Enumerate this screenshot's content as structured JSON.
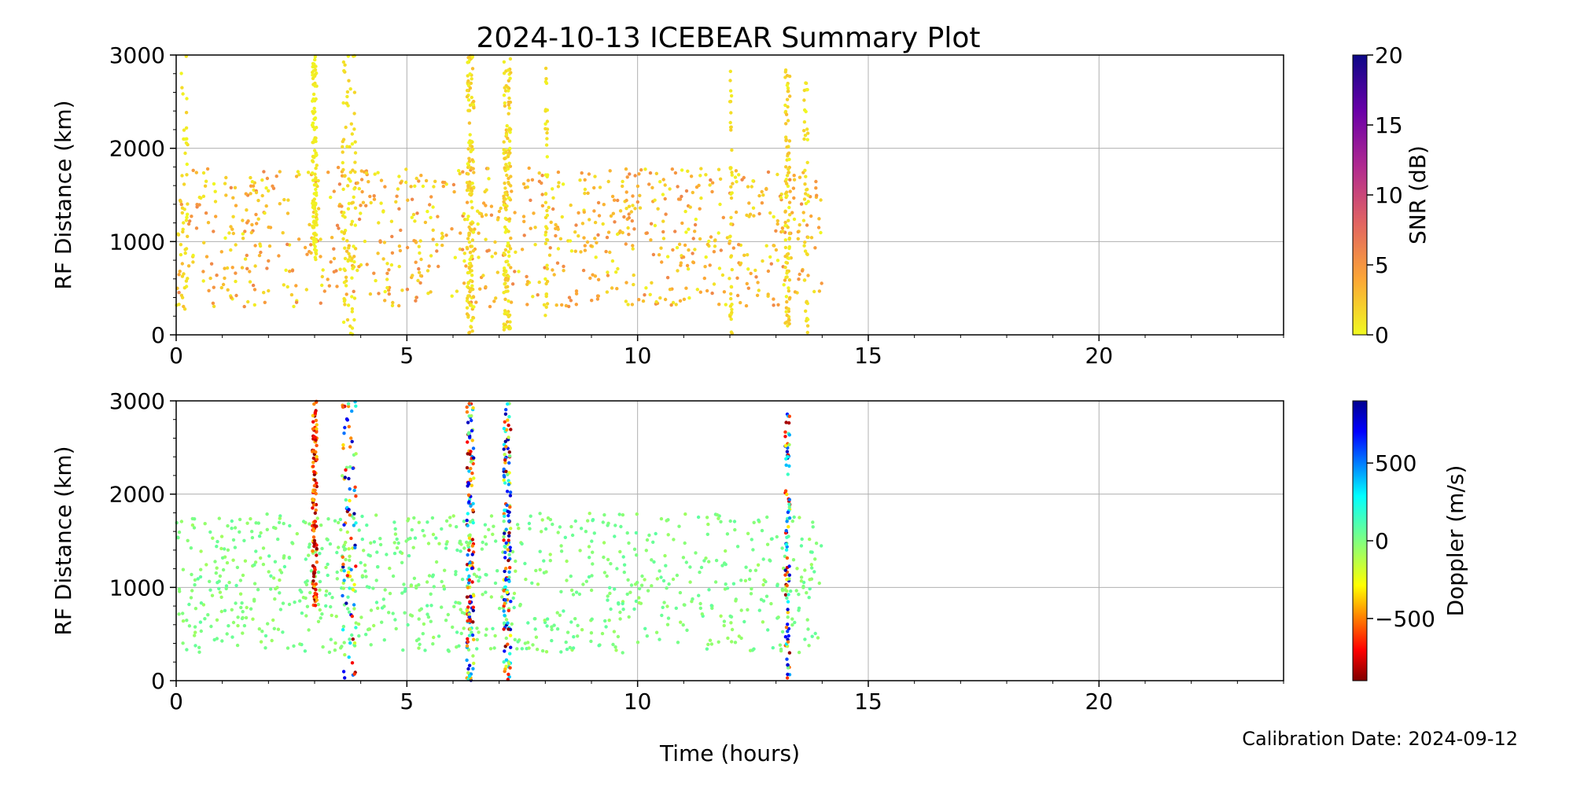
{
  "title": "2024-10-13 ICEBEAR Summary Plot",
  "footer": "Calibration Date: 2024-09-12",
  "xlabel": "Time (hours)",
  "chart_data": [
    {
      "type": "scatter",
      "ylabel": "RF Distance (km)",
      "xlim": [
        0,
        24
      ],
      "ylim": [
        0,
        3000
      ],
      "xticks": [
        0,
        5,
        10,
        15,
        20
      ],
      "yticks": [
        0,
        1000,
        2000,
        3000
      ],
      "grid": true,
      "color_variable": "SNR (dB)",
      "colorbar": {
        "label": "SNR (dB)",
        "range": [
          0,
          20
        ],
        "ticks": [
          0,
          5,
          10,
          15,
          20
        ],
        "tick_labels": [
          "0",
          "5",
          "10",
          "15",
          "20"
        ],
        "colormap": "plasma_r",
        "colors": [
          "#f0f921",
          "#fca636",
          "#e16462",
          "#b12a90",
          "#6a00a8",
          "#0d0887"
        ]
      },
      "clusters": [
        {
          "x_range": [
            0.1,
            0.25
          ],
          "y_range": [
            0,
            3000
          ],
          "color_value_range": [
            0,
            2
          ],
          "count": 40
        },
        {
          "x_range": [
            0.0,
            14.0
          ],
          "y_range": [
            300,
            1800
          ],
          "color_value_range": [
            0,
            6
          ],
          "count": 900
        },
        {
          "x_range": [
            2.95,
            3.05
          ],
          "y_range": [
            800,
            3000
          ],
          "color_value_range": [
            0,
            1
          ],
          "count": 120
        },
        {
          "x_range": [
            3.6,
            3.9
          ],
          "y_range": [
            0,
            3000
          ],
          "color_value_range": [
            0,
            2
          ],
          "count": 90
        },
        {
          "x_range": [
            6.3,
            6.45
          ],
          "y_range": [
            0,
            3000
          ],
          "color_value_range": [
            0,
            3
          ],
          "count": 150
        },
        {
          "x_range": [
            7.1,
            7.25
          ],
          "y_range": [
            0,
            3000
          ],
          "color_value_range": [
            0,
            3
          ],
          "count": 140
        },
        {
          "x_range": [
            8.0,
            8.05
          ],
          "y_range": [
            200,
            2900
          ],
          "color_value_range": [
            0,
            2
          ],
          "count": 40
        },
        {
          "x_range": [
            12.0,
            12.05
          ],
          "y_range": [
            0,
            2900
          ],
          "color_value_range": [
            0,
            2
          ],
          "count": 40
        },
        {
          "x_range": [
            13.2,
            13.3
          ],
          "y_range": [
            0,
            2900
          ],
          "color_value_range": [
            0,
            3
          ],
          "count": 90
        },
        {
          "x_range": [
            13.6,
            13.7
          ],
          "y_range": [
            0,
            2800
          ],
          "color_value_range": [
            0,
            2
          ],
          "count": 40
        }
      ]
    },
    {
      "type": "scatter",
      "ylabel": "RF Distance (km)",
      "xlim": [
        0,
        24
      ],
      "ylim": [
        0,
        3000
      ],
      "xticks": [
        0,
        5,
        10,
        15,
        20
      ],
      "yticks": [
        0,
        1000,
        2000,
        3000
      ],
      "grid": true,
      "color_variable": "Doppler (m/s)",
      "colorbar": {
        "label": "Doppler (m/s)",
        "range": [
          -900,
          900
        ],
        "ticks": [
          500,
          0,
          -500
        ],
        "tick_labels": [
          "500",
          "0",
          "−500"
        ],
        "colormap": "jet_r",
        "colors": [
          "#800000",
          "#ff0000",
          "#ff8000",
          "#ffff00",
          "#80ff80",
          "#00ffff",
          "#0080ff",
          "#0000ff",
          "#00008f"
        ]
      },
      "clusters": [
        {
          "x_range": [
            0.0,
            14.0
          ],
          "y_range": [
            300,
            1800
          ],
          "color_value_range": [
            -60,
            60
          ],
          "count": 900
        },
        {
          "x_range": [
            2.95,
            3.05
          ],
          "y_range": [
            800,
            3000
          ],
          "color_value_range": [
            -900,
            -300
          ],
          "count": 120
        },
        {
          "x_range": [
            3.6,
            3.9
          ],
          "y_range": [
            0,
            3000
          ],
          "color_value_range": [
            -900,
            900
          ],
          "count": 90
        },
        {
          "x_range": [
            6.3,
            6.45
          ],
          "y_range": [
            0,
            3000
          ],
          "color_value_range": [
            -900,
            900
          ],
          "count": 150
        },
        {
          "x_range": [
            7.1,
            7.25
          ],
          "y_range": [
            0,
            3000
          ],
          "color_value_range": [
            -900,
            900
          ],
          "count": 140
        },
        {
          "x_range": [
            13.2,
            13.3
          ],
          "y_range": [
            0,
            2900
          ],
          "color_value_range": [
            -900,
            900
          ],
          "count": 90
        }
      ]
    }
  ]
}
